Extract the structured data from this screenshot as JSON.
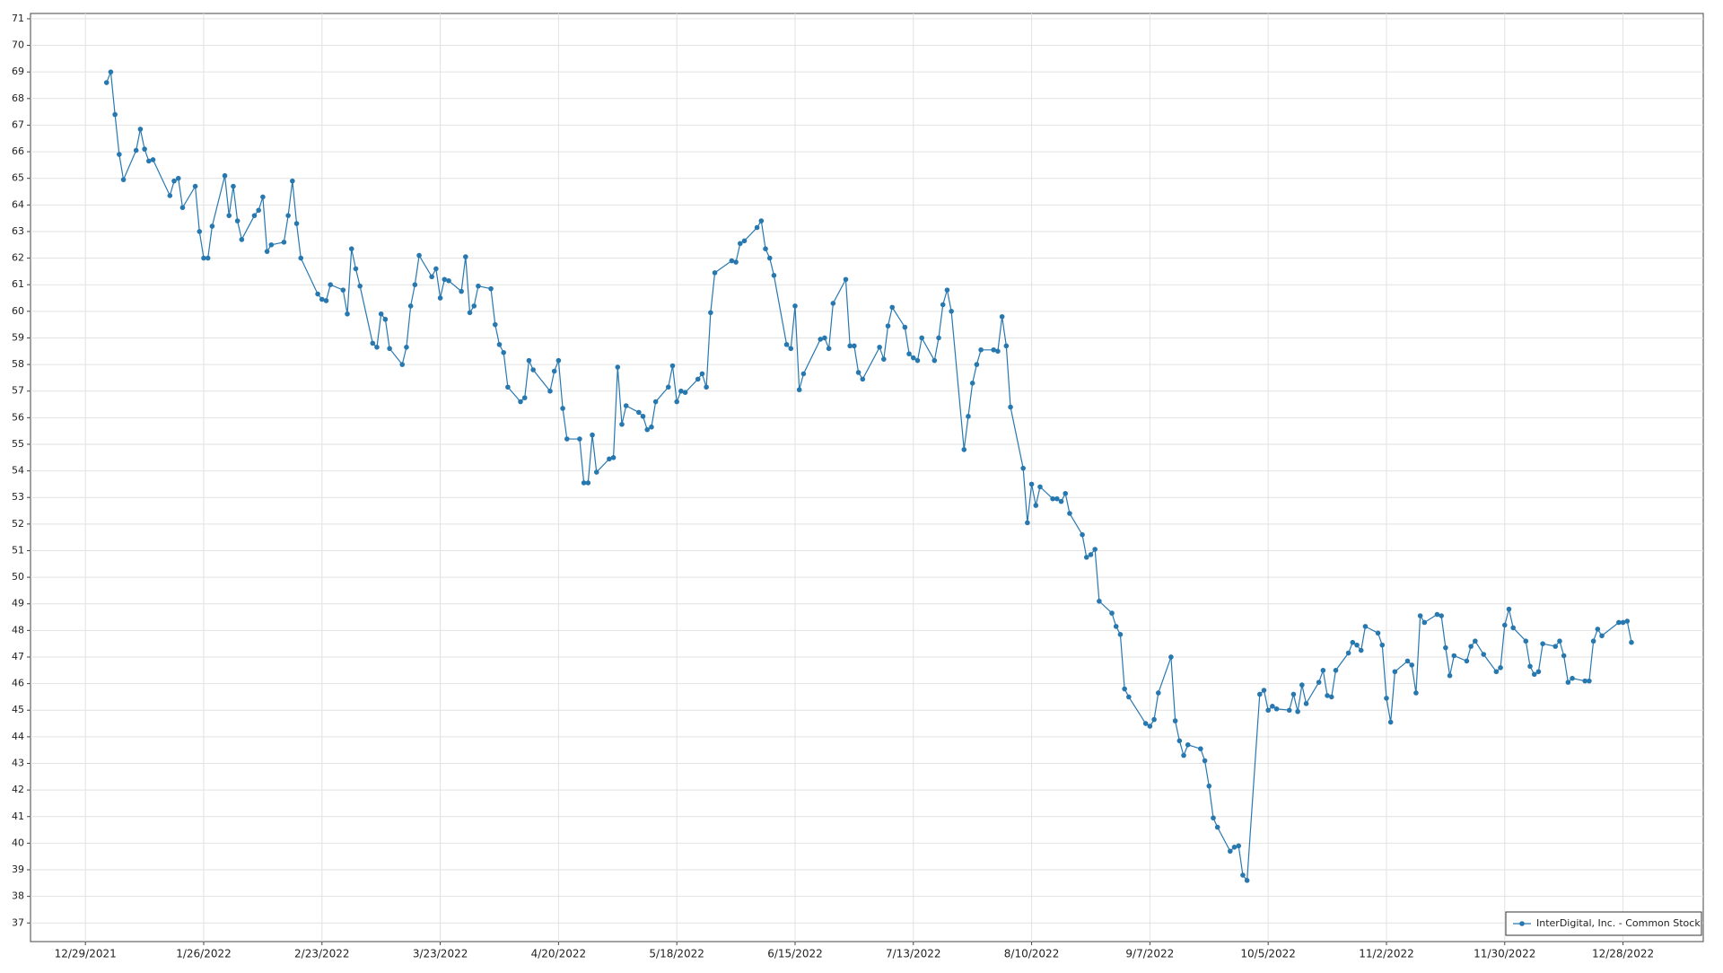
{
  "chart_data": {
    "type": "line",
    "x": [
      "1/3/2022",
      "1/4/2022",
      "1/5/2022",
      "1/6/2022",
      "1/7/2022",
      "1/10/2022",
      "1/11/2022",
      "1/12/2022",
      "1/13/2022",
      "1/14/2022",
      "1/18/2022",
      "1/19/2022",
      "1/20/2022",
      "1/21/2022",
      "1/24/2022",
      "1/25/2022",
      "1/26/2022",
      "1/27/2022",
      "1/28/2022",
      "1/31/2022",
      "2/1/2022",
      "2/2/2022",
      "2/3/2022",
      "2/4/2022",
      "2/7/2022",
      "2/8/2022",
      "2/9/2022",
      "2/10/2022",
      "2/11/2022",
      "2/14/2022",
      "2/15/2022",
      "2/16/2022",
      "2/17/2022",
      "2/18/2022",
      "2/22/2022",
      "2/23/2022",
      "2/24/2022",
      "2/25/2022",
      "2/28/2022",
      "3/1/2022",
      "3/2/2022",
      "3/3/2022",
      "3/4/2022",
      "3/7/2022",
      "3/8/2022",
      "3/9/2022",
      "3/10/2022",
      "3/11/2022",
      "3/14/2022",
      "3/15/2022",
      "3/16/2022",
      "3/17/2022",
      "3/18/2022",
      "3/21/2022",
      "3/22/2022",
      "3/23/2022",
      "3/24/2022",
      "3/25/2022",
      "3/28/2022",
      "3/29/2022",
      "3/30/2022",
      "3/31/2022",
      "4/1/2022",
      "4/4/2022",
      "4/5/2022",
      "4/6/2022",
      "4/7/2022",
      "4/8/2022",
      "4/11/2022",
      "4/12/2022",
      "4/13/2022",
      "4/14/2022",
      "4/18/2022",
      "4/19/2022",
      "4/20/2022",
      "4/21/2022",
      "4/22/2022",
      "4/25/2022",
      "4/26/2022",
      "4/27/2022",
      "4/28/2022",
      "4/29/2022",
      "5/2/2022",
      "5/3/2022",
      "5/4/2022",
      "5/5/2022",
      "5/6/2022",
      "5/9/2022",
      "5/10/2022",
      "5/11/2022",
      "5/12/2022",
      "5/13/2022",
      "5/16/2022",
      "5/17/2022",
      "5/18/2022",
      "5/19/2022",
      "5/20/2022",
      "5/23/2022",
      "5/24/2022",
      "5/25/2022",
      "5/26/2022",
      "5/27/2022",
      "5/31/2022",
      "6/1/2022",
      "6/2/2022",
      "6/3/2022",
      "6/6/2022",
      "6/7/2022",
      "6/8/2022",
      "6/9/2022",
      "6/10/2022",
      "6/13/2022",
      "6/14/2022",
      "6/15/2022",
      "6/16/2022",
      "6/17/2022",
      "6/21/2022",
      "6/22/2022",
      "6/23/2022",
      "6/24/2022",
      "6/27/2022",
      "6/28/2022",
      "6/29/2022",
      "6/30/2022",
      "7/1/2022",
      "7/5/2022",
      "7/6/2022",
      "7/7/2022",
      "7/8/2022",
      "7/11/2022",
      "7/12/2022",
      "7/13/2022",
      "7/14/2022",
      "7/15/2022",
      "7/18/2022",
      "7/19/2022",
      "7/20/2022",
      "7/21/2022",
      "7/22/2022",
      "7/25/2022",
      "7/26/2022",
      "7/27/2022",
      "7/28/2022",
      "7/29/2022",
      "8/1/2022",
      "8/2/2022",
      "8/3/2022",
      "8/4/2022",
      "8/5/2022",
      "8/8/2022",
      "8/9/2022",
      "8/10/2022",
      "8/11/2022",
      "8/12/2022",
      "8/15/2022",
      "8/16/2022",
      "8/17/2022",
      "8/18/2022",
      "8/19/2022",
      "8/22/2022",
      "8/23/2022",
      "8/24/2022",
      "8/25/2022",
      "8/26/2022",
      "8/29/2022",
      "8/30/2022",
      "8/31/2022",
      "9/1/2022",
      "9/2/2022",
      "9/6/2022",
      "9/7/2022",
      "9/8/2022",
      "9/9/2022",
      "9/12/2022",
      "9/13/2022",
      "9/14/2022",
      "9/15/2022",
      "9/16/2022",
      "9/19/2022",
      "9/20/2022",
      "9/21/2022",
      "9/22/2022",
      "9/23/2022",
      "9/26/2022",
      "9/27/2022",
      "9/28/2022",
      "9/29/2022",
      "9/30/2022",
      "10/3/2022",
      "10/4/2022",
      "10/5/2022",
      "10/6/2022",
      "10/7/2022",
      "10/10/2022",
      "10/11/2022",
      "10/12/2022",
      "10/13/2022",
      "10/14/2022",
      "10/17/2022",
      "10/18/2022",
      "10/19/2022",
      "10/20/2022",
      "10/21/2022",
      "10/24/2022",
      "10/25/2022",
      "10/26/2022",
      "10/27/2022",
      "10/28/2022",
      "10/31/2022",
      "11/1/2022",
      "11/2/2022",
      "11/3/2022",
      "11/4/2022",
      "11/7/2022",
      "11/8/2022",
      "11/9/2022",
      "11/10/2022",
      "11/11/2022",
      "11/14/2022",
      "11/15/2022",
      "11/16/2022",
      "11/17/2022",
      "11/18/2022",
      "11/21/2022",
      "11/22/2022",
      "11/23/2022",
      "11/25/2022",
      "11/28/2022",
      "11/29/2022",
      "11/30/2022",
      "12/1/2022",
      "12/2/2022",
      "12/5/2022",
      "12/6/2022",
      "12/7/2022",
      "12/8/2022",
      "12/9/2022",
      "12/12/2022",
      "12/13/2022",
      "12/14/2022",
      "12/15/2022",
      "12/16/2022",
      "12/19/2022",
      "12/20/2022",
      "12/21/2022",
      "12/22/2022",
      "12/23/2022",
      "12/27/2022",
      "12/28/2022",
      "12/29/2022",
      "12/30/2022"
    ],
    "series": [
      {
        "name": "InterDigital, Inc. - Common Stock",
        "color": "#2878b0",
        "values": [
          68.6,
          69.0,
          67.4,
          65.9,
          64.95,
          66.05,
          66.85,
          66.1,
          65.65,
          65.7,
          64.35,
          64.9,
          65.0,
          63.9,
          64.7,
          63.0,
          62.0,
          62.0,
          63.2,
          65.1,
          63.6,
          64.7,
          63.4,
          62.7,
          63.6,
          63.8,
          64.3,
          62.25,
          62.5,
          62.6,
          63.6,
          64.9,
          63.3,
          62.0,
          60.65,
          60.45,
          60.4,
          61.0,
          60.8,
          59.9,
          62.35,
          61.6,
          60.95,
          58.8,
          58.65,
          59.9,
          59.7,
          58.6,
          58.0,
          58.65,
          60.2,
          61.0,
          62.1,
          61.3,
          61.6,
          60.5,
          61.2,
          61.15,
          60.75,
          62.05,
          59.95,
          60.2,
          60.95,
          60.85,
          59.5,
          58.75,
          58.45,
          57.15,
          56.6,
          56.75,
          58.15,
          57.8,
          57.0,
          57.75,
          58.15,
          56.35,
          55.2,
          55.2,
          53.55,
          53.55,
          55.35,
          53.95,
          54.45,
          54.5,
          57.9,
          55.75,
          56.45,
          56.2,
          56.05,
          55.55,
          55.65,
          56.6,
          57.15,
          57.95,
          56.6,
          57.0,
          56.95,
          57.45,
          57.65,
          57.15,
          59.95,
          61.45,
          61.9,
          61.85,
          62.55,
          62.65,
          63.15,
          63.4,
          62.35,
          62.0,
          61.35,
          58.75,
          58.6,
          60.2,
          57.05,
          57.65,
          58.95,
          59.0,
          58.6,
          60.3,
          61.2,
          58.7,
          58.7,
          57.7,
          57.45,
          58.65,
          58.2,
          59.45,
          60.15,
          59.4,
          58.4,
          58.25,
          58.15,
          59.0,
          58.15,
          59.0,
          60.25,
          60.8,
          60.0,
          54.8,
          56.05,
          57.3,
          58.0,
          58.55,
          58.55,
          58.5,
          59.8,
          58.7,
          56.4,
          54.1,
          52.05,
          53.5,
          52.7,
          53.4,
          52.95,
          52.95,
          52.85,
          53.15,
          52.4,
          51.6,
          50.75,
          50.85,
          51.05,
          49.1,
          48.65,
          48.15,
          47.85,
          45.8,
          45.5,
          44.5,
          44.4,
          44.65,
          45.65,
          47.0,
          44.6,
          43.85,
          43.3,
          43.7,
          43.55,
          43.1,
          42.15,
          40.95,
          40.6,
          39.7,
          39.85,
          39.9,
          38.8,
          38.6,
          45.6,
          45.75,
          45.0,
          45.15,
          45.05,
          45.0,
          45.6,
          44.95,
          45.95,
          45.25,
          46.05,
          46.5,
          45.55,
          45.5,
          46.5,
          47.15,
          47.55,
          47.45,
          47.25,
          48.15,
          47.9,
          47.45,
          45.45,
          44.55,
          46.45,
          46.85,
          46.7,
          45.65,
          48.55,
          48.3,
          48.6,
          48.55,
          47.35,
          46.3,
          47.05,
          46.85,
          47.4,
          47.6,
          47.1,
          46.45,
          46.6,
          48.2,
          48.8,
          48.1,
          47.6,
          46.65,
          46.35,
          46.45,
          47.5,
          47.4,
          47.6,
          47.05,
          46.05,
          46.2,
          46.1,
          46.1,
          47.6,
          48.05,
          47.8,
          48.3,
          48.3,
          48.35,
          47.55
        ]
      }
    ],
    "xlim": [
      "12/16/2021",
      "1/16/2023"
    ],
    "xticks": [
      "12/29/2021",
      "1/26/2022",
      "2/23/2022",
      "3/23/2022",
      "4/20/2022",
      "5/18/2022",
      "6/15/2022",
      "7/13/2022",
      "8/10/2022",
      "9/7/2022",
      "10/5/2022",
      "11/2/2022",
      "11/30/2022",
      "12/28/2022"
    ],
    "ylim": [
      36.3,
      71.2
    ],
    "yticks": [
      37,
      38,
      39,
      40,
      41,
      42,
      43,
      44,
      45,
      46,
      47,
      48,
      49,
      50,
      51,
      52,
      53,
      54,
      55,
      56,
      57,
      58,
      59,
      60,
      61,
      62,
      63,
      64,
      65,
      66,
      67,
      68,
      69,
      70,
      71
    ],
    "grid": true,
    "legend": "bottom-right"
  }
}
